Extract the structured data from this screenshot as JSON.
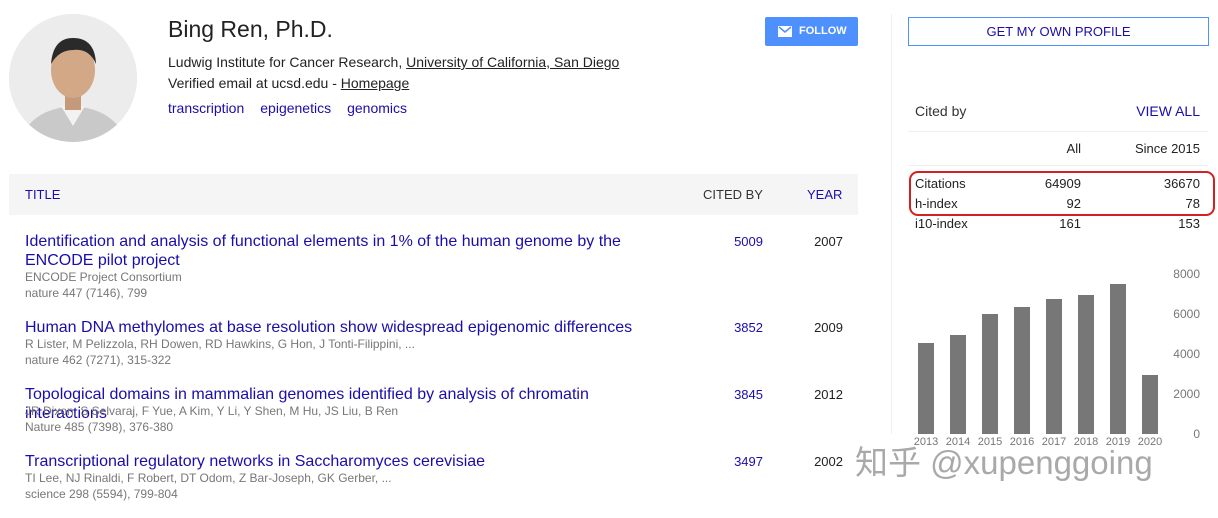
{
  "profile": {
    "name": "Bing Ren, Ph.D.",
    "affiliation_prefix": "Ludwig Institute for Cancer Research, ",
    "affiliation_link": "University of California, San Diego",
    "email": "Verified email at ucsd.edu - ",
    "homepage": "Homepage",
    "interests": [
      "transcription",
      "epigenetics",
      "genomics"
    ],
    "follow": "FOLLOW"
  },
  "table": {
    "headers": [
      "TITLE",
      "CITED BY",
      "YEAR"
    ],
    "rows": [
      {
        "title": "Identification and analysis of functional elements in 1% of the human genome by the ENCODE pilot project",
        "authors": "ENCODE Project Consortium",
        "venue": "nature 447 (7146), 799",
        "cited_by": 5009,
        "year": 2007
      },
      {
        "title": "Human DNA methylomes at base resolution show widespread epigenomic differences",
        "authors": "R Lister, M Pelizzola, RH Dowen, RD Hawkins, G Hon, J Tonti-Filippini, ...",
        "venue": "nature 462 (7271), 315-322",
        "cited_by": 3852,
        "year": 2009
      },
      {
        "title": "Topological domains in mammalian genomes identified by analysis of chromatin interactions",
        "authors": "JR Dixon, S Selvaraj, F Yue, A Kim, Y Li, Y Shen, M Hu, JS Liu, B Ren",
        "venue": "Nature 485 (7398), 376-380",
        "cited_by": 3845,
        "year": 2012
      },
      {
        "title": "Transcriptional regulatory networks in Saccharomyces cerevisiae",
        "authors": "TI Lee, NJ Rinaldi, F Robert, DT Odom, Z Bar-Joseph, GK Gerber, ...",
        "venue": "science 298 (5594), 799-804",
        "cited_by": 3497,
        "year": 2002
      }
    ]
  },
  "sidebar": {
    "button": "GET MY OWN PROFILE",
    "cited_by": "Cited by",
    "view_all": "VIEW ALL",
    "columns": [
      "All",
      "Since 2015"
    ],
    "metrics": [
      {
        "name": "Citations",
        "all": 64909,
        "since": 36670
      },
      {
        "name": "h-index",
        "all": 92,
        "since": 78
      },
      {
        "name": "i10-index",
        "all": 161,
        "since": 153
      }
    ]
  },
  "chart_data": {
    "type": "bar",
    "categories": [
      "2013",
      "2014",
      "2015",
      "2016",
      "2017",
      "2018",
      "2019",
      "2020"
    ],
    "values": [
      4550,
      4950,
      6000,
      6350,
      6750,
      6950,
      7500,
      2950
    ],
    "color": "#777777",
    "ylim": [
      0,
      8000
    ],
    "yticks": [
      0,
      2000,
      4000,
      6000,
      8000
    ],
    "grid": false
  },
  "watermark": "知乎 @xupenggoing"
}
